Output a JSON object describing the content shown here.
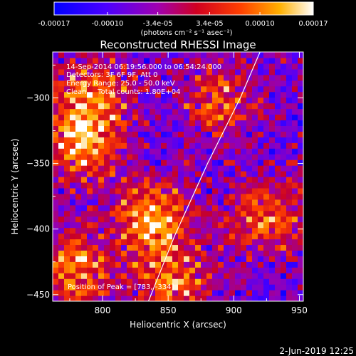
{
  "chart_data": {
    "type": "heatmap",
    "title": "Reconstructed RHESSI Image",
    "xlabel": "Heliocentric X (arcsec)",
    "ylabel": "Heliocentric Y (arcsec)",
    "xlim": [
      762,
      953
    ],
    "ylim": [
      -455,
      -265
    ],
    "x_ticks": [
      800,
      850,
      900,
      950
    ],
    "y_ticks": [
      -450,
      -400,
      -350,
      -300
    ],
    "colorbar": {
      "label": "(photons cm⁻² s⁻¹ asec⁻²)",
      "ticks": [
        "-0.00017",
        "-0.00010",
        "-3.4e-05",
        "3.4e-05",
        "0.00010",
        "0.00017"
      ],
      "range": [
        -0.00017,
        0.00017
      ]
    },
    "annotations": [
      "14-Sep-2014 06:19:56.000 to 06:54:24.000",
      "Detectors: 3F 6F 9F, Att 0",
      "Energy Range: 25.0 - 50.0 keV",
      "Clean     Total counts: 1.80E+04",
      "Position of Peak = [783, -334]"
    ],
    "sources": [
      {
        "x": 837,
        "y": -392,
        "amplitude": 1.0
      },
      {
        "x": 783,
        "y": -334,
        "amplitude": 0.95
      },
      {
        "x": 792,
        "y": -298,
        "amplitude": 0.8
      },
      {
        "x": 890,
        "y": -300,
        "amplitude": 0.7
      },
      {
        "x": 925,
        "y": -390,
        "amplitude": 0.75
      },
      {
        "x": 855,
        "y": -440,
        "amplitude": 0.8
      },
      {
        "x": 778,
        "y": -430,
        "amplitude": 0.85
      }
    ],
    "limb_curve": [
      [
        835,
        -455
      ],
      [
        855,
        -405
      ],
      [
        880,
        -350
      ],
      [
        905,
        -300
      ],
      [
        920,
        -265
      ]
    ]
  },
  "footer": {
    "date": "2-Jun-2019 12:25"
  }
}
